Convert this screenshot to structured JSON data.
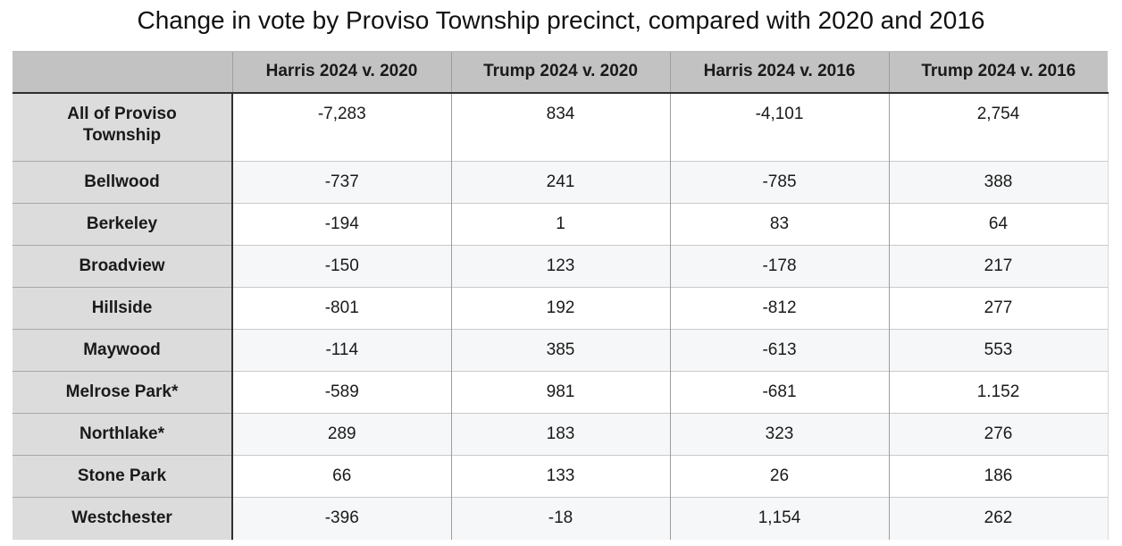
{
  "title": "Change in vote by Proviso Township precinct, compared with 2020 and 2016",
  "chart_data": {
    "type": "table",
    "columns": [
      "",
      "Harris 2024 v. 2020",
      "Trump 2024 v. 2020",
      "Harris 2024 v. 2016",
      "Trump 2024 v. 2016"
    ],
    "rows": [
      {
        "label": "All of Proviso\nTownship",
        "values": [
          "-7,283",
          "834",
          "-4,101",
          "2,754"
        ]
      },
      {
        "label": "Bellwood",
        "values": [
          "-737",
          "241",
          "-785",
          "388"
        ]
      },
      {
        "label": "Berkeley",
        "values": [
          "-194",
          "1",
          "83",
          "64"
        ]
      },
      {
        "label": "Broadview",
        "values": [
          "-150",
          "123",
          "-178",
          "217"
        ]
      },
      {
        "label": "Hillside",
        "values": [
          "-801",
          "192",
          "-812",
          "277"
        ]
      },
      {
        "label": "Maywood",
        "values": [
          "-114",
          "385",
          "-613",
          "553"
        ]
      },
      {
        "label": "Melrose Park*",
        "values": [
          "-589",
          "981",
          "-681",
          "1.152"
        ]
      },
      {
        "label": "Northlake*",
        "values": [
          "289",
          "183",
          "323",
          "276"
        ]
      },
      {
        "label": "Stone Park",
        "values": [
          "66",
          "133",
          "26",
          "186"
        ]
      },
      {
        "label": "Westchester",
        "values": [
          "-396",
          "-18",
          "1,154",
          "262"
        ]
      }
    ]
  },
  "colors": {
    "header_bg": "#c2c2c2",
    "label_column_bg": "#dcdcdc",
    "row_bg": "#ffffff",
    "row_alt_bg": "#f6f7f8",
    "dark_border": "#2f2f2f",
    "column_border": "#9e9e9e",
    "row_border": "#c9c9c9",
    "text": "#1a1a1a"
  }
}
